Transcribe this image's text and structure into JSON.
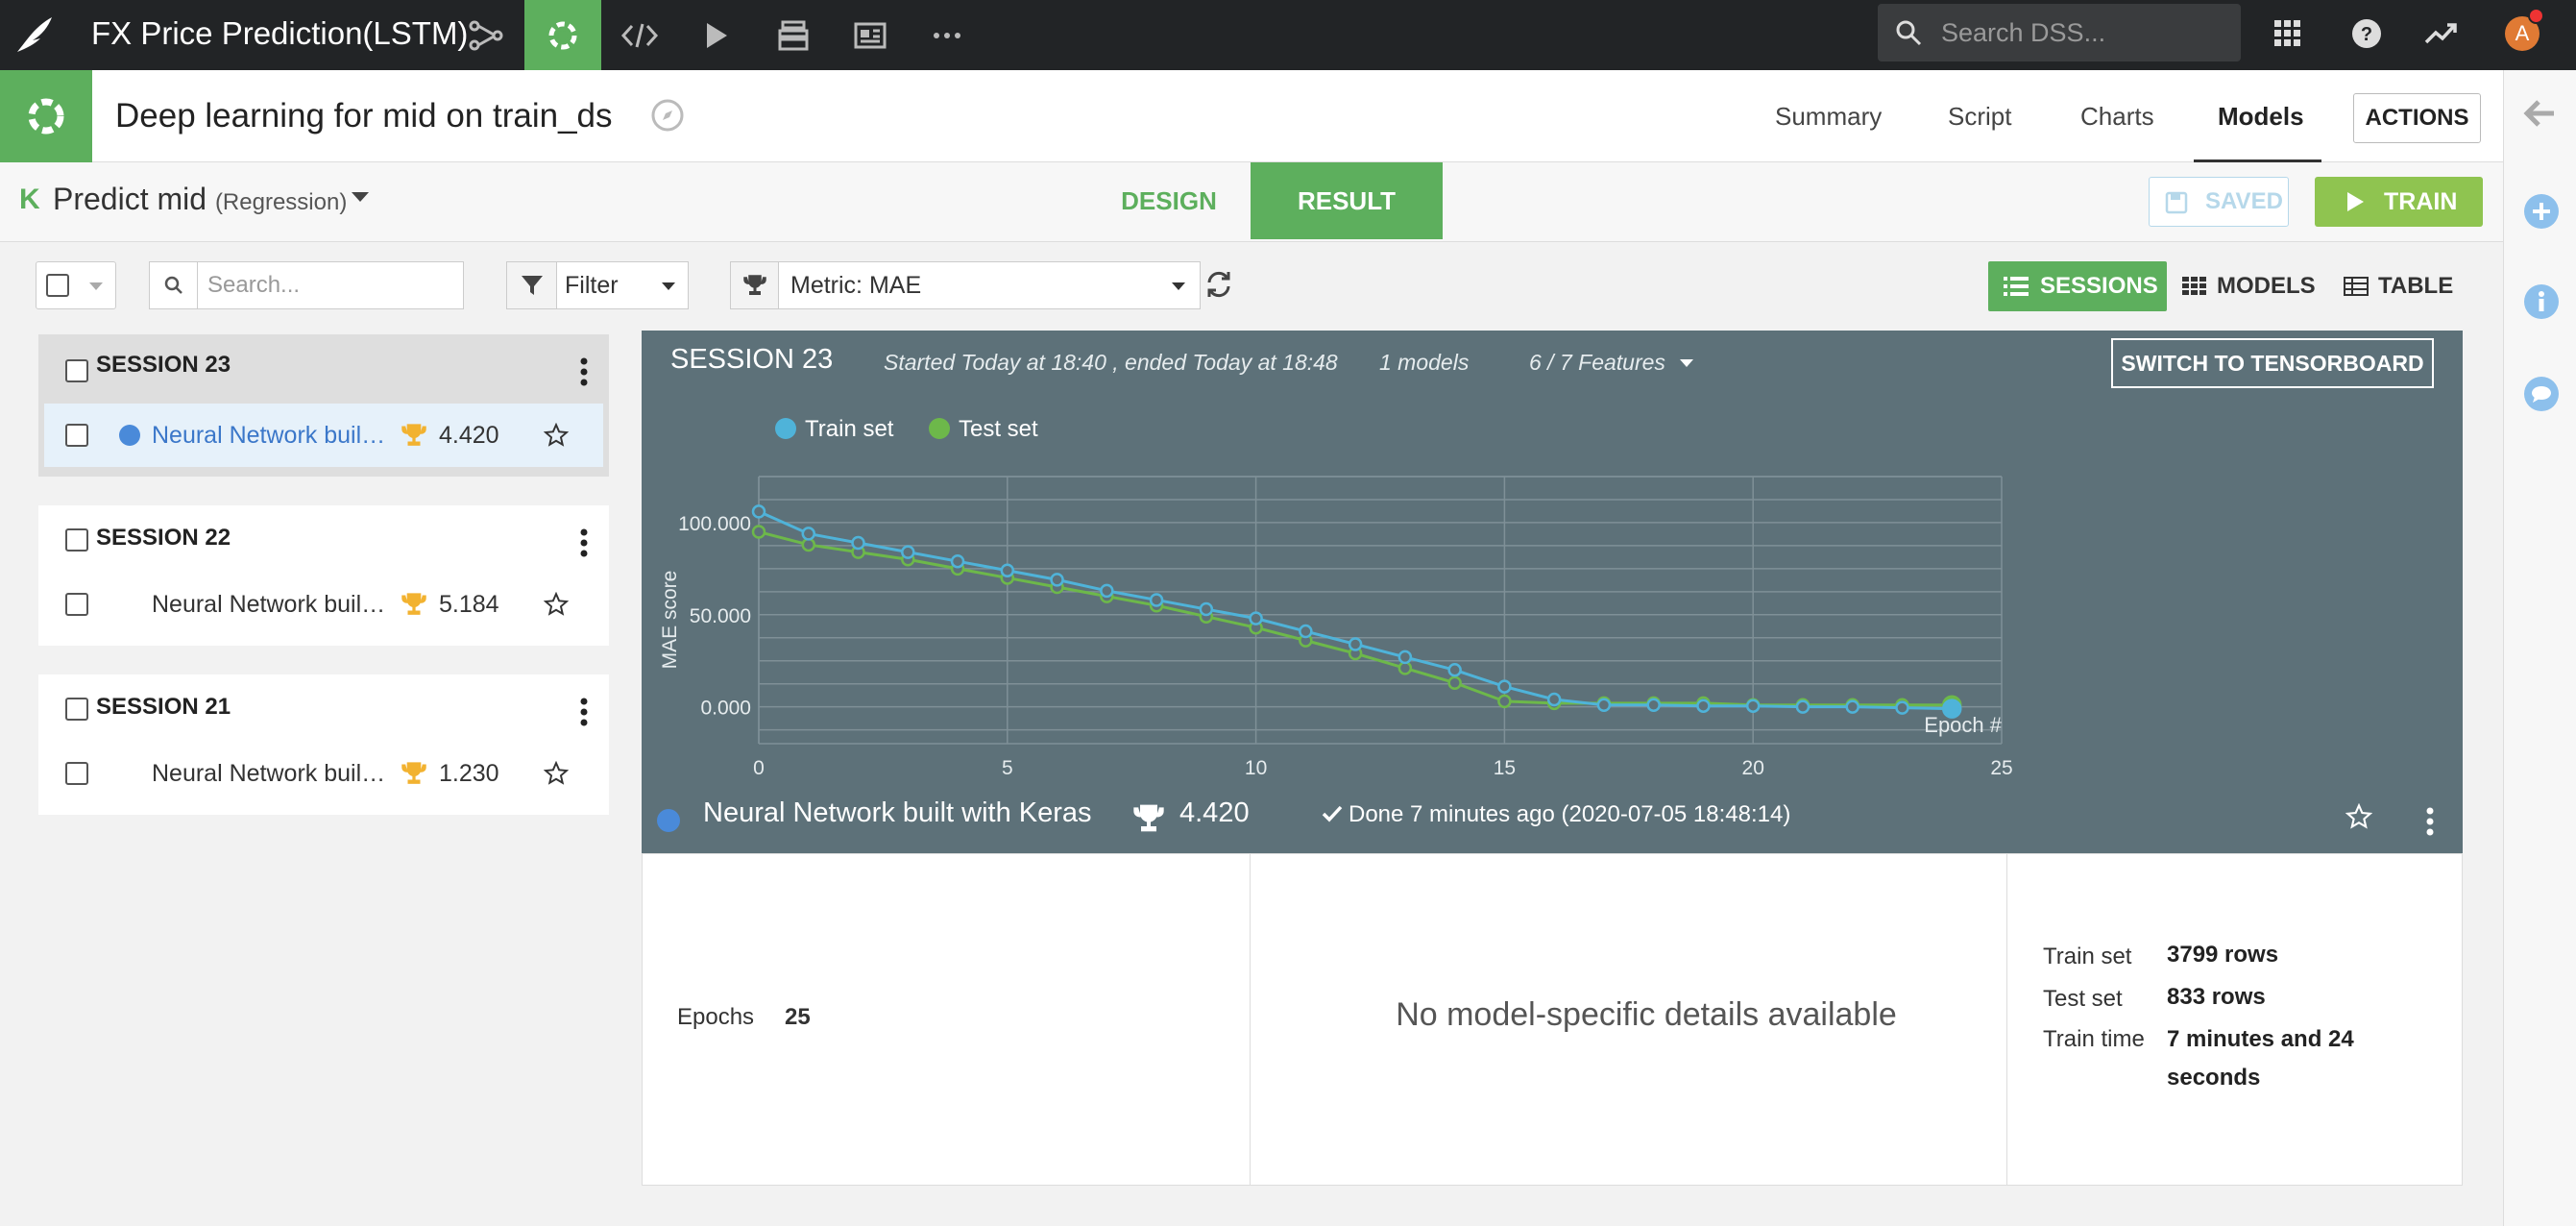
{
  "app": {
    "title": "FX Price Prediction(LSTM)",
    "search_placeholder": "Search DSS...",
    "avatar_initial": "A"
  },
  "header": {
    "title": "Deep learning for mid on train_ds",
    "nav": [
      "Summary",
      "Script",
      "Charts",
      "Models"
    ],
    "active_nav": "Models",
    "actions_label": "ACTIONS"
  },
  "task": {
    "logo": "K",
    "predict_label": "Predict mid",
    "type_label": "(Regression)",
    "design_tab": "DESIGN",
    "result_tab": "RESULT",
    "saved_label": "SAVED",
    "train_label": "TRAIN"
  },
  "toolbar": {
    "search_placeholder": "Search...",
    "filter_label": "Filter",
    "metric_label": "Metric: MAE",
    "view_sessions": "SESSIONS",
    "view_models": "MODELS",
    "view_table": "TABLE"
  },
  "sessions": [
    {
      "title": "SESSION 23",
      "model": "Neural Network built with Keras",
      "score": "4.420",
      "selected": true
    },
    {
      "title": "SESSION 22",
      "model": "Neural Network built with Keras",
      "score": "5.184",
      "selected": false
    },
    {
      "title": "SESSION 21",
      "model": "Neural Network built with Keras",
      "score": "1.230",
      "selected": false
    }
  ],
  "panel": {
    "title": "SESSION 23",
    "times": "Started Today at 18:40 , ended Today at 18:48",
    "models_count": "1 models",
    "features": "6 / 7 Features",
    "switch_label": "SWITCH TO TENSORBOARD",
    "model_name": "Neural Network built with Keras",
    "model_score": "4.420",
    "done_text": "Done 7 minutes ago (2020-07-05 18:48:14)"
  },
  "details": {
    "epochs_label": "Epochs",
    "epochs_value": "25",
    "no_details": "No model-specific details available",
    "train_set_label": "Train set",
    "train_set_value": "3799 rows",
    "test_set_label": "Test set",
    "test_set_value": "833 rows",
    "train_time_label": "Train time",
    "train_time_value": "7 minutes and 24 seconds"
  },
  "colors": {
    "brand_green": "#5daf5d",
    "train_line": "#4fb3d9",
    "test_line": "#6db84a",
    "panel_bg": "#5d7179"
  },
  "chart_data": {
    "type": "line",
    "xlabel": "Epoch #",
    "ylabel": "MAE score",
    "xlim": [
      0,
      25
    ],
    "ylim": [
      -20,
      125
    ],
    "xticks": [
      0,
      5,
      10,
      15,
      20,
      25
    ],
    "yticks": [
      0,
      50,
      100
    ],
    "ytick_labels": [
      "0.000",
      "50.000",
      "100.000"
    ],
    "grid": true,
    "legend_position": "top-left",
    "x": [
      0,
      1,
      2,
      3,
      4,
      5,
      6,
      7,
      8,
      9,
      10,
      11,
      12,
      13,
      14,
      15,
      16,
      17,
      18,
      19,
      20,
      21,
      22,
      23,
      24
    ],
    "series": [
      {
        "name": "Train set",
        "color": "#4fb3d9",
        "values": [
          106,
          94,
          89,
          84,
          79,
          74,
          69,
          63,
          58,
          53,
          48,
          41,
          34,
          27,
          20,
          11,
          4,
          1,
          1,
          0.5,
          0.5,
          0,
          0,
          -0.5,
          -1
        ]
      },
      {
        "name": "Test set",
        "color": "#6db84a",
        "values": [
          95,
          88,
          84,
          80,
          75,
          70,
          65,
          60,
          55,
          49,
          43,
          36,
          29,
          21,
          13,
          3,
          2,
          2,
          2,
          2,
          1,
          1,
          1,
          1,
          1
        ]
      }
    ]
  }
}
